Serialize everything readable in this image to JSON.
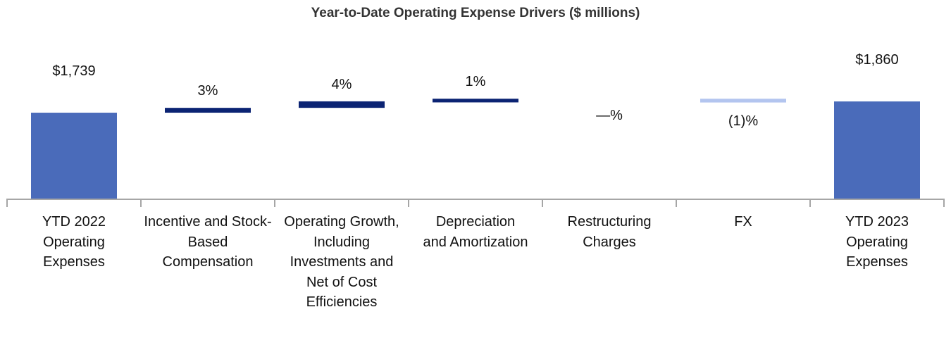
{
  "chart_data": {
    "type": "waterfall",
    "title": "Year-to-Date Operating Expense Drivers ($ millions)",
    "categories": [
      "YTD 2022 Operating Expenses",
      "Incentive and Stock-Based Compensation",
      "Operating Growth, Including Investments and Net of Cost Efficiencies",
      "Depreciation and Amortization",
      "Restructuring Charges",
      "FX",
      "YTD 2023 Operating Expenses"
    ],
    "kinds": [
      "total",
      "delta",
      "delta",
      "delta",
      "delta",
      "delta",
      "total"
    ],
    "values": [
      1739,
      52,
      70,
      17,
      0,
      -18,
      1860
    ],
    "data_labels": [
      "$1,739",
      "3%",
      "4%",
      "1%",
      "—%",
      "(1)%",
      "$1,860"
    ],
    "ylim": [
      815,
      2500
    ],
    "grid": false,
    "colors": {
      "total": "#4A6BBA",
      "increase": "#0B2373",
      "decrease": "#B3C5EF",
      "axis": "#A6A6A6"
    }
  }
}
